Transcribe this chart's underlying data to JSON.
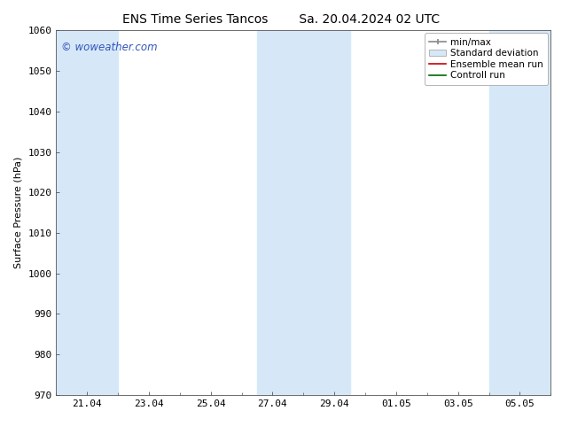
{
  "title_left": "ENS Time Series Tancos",
  "title_right": "Sa. 20.04.2024 02 UTC",
  "ylabel": "Surface Pressure (hPa)",
  "ylim": [
    970,
    1060
  ],
  "yticks": [
    970,
    980,
    990,
    1000,
    1010,
    1020,
    1030,
    1040,
    1050,
    1060
  ],
  "xtick_labels": [
    "21.04",
    "23.04",
    "25.04",
    "27.04",
    "29.04",
    "01.05",
    "03.05",
    "05.05"
  ],
  "xtick_positions": [
    1,
    3,
    5,
    7,
    9,
    11,
    13,
    15
  ],
  "xlim": [
    0,
    16
  ],
  "shaded_bands": [
    {
      "x_start": 0.0,
      "x_end": 2.0,
      "color": "#d6e8f8"
    },
    {
      "x_start": 6.5,
      "x_end": 9.5,
      "color": "#d6e8f8"
    },
    {
      "x_start": 14.0,
      "x_end": 16.0,
      "color": "#d6e8f8"
    }
  ],
  "bg_color": "#ffffff",
  "plot_bg_color": "#ffffff",
  "tick_color": "#333333",
  "watermark_text": "© woweather.com",
  "watermark_color": "#3355bb",
  "legend_items": [
    {
      "label": "min/max",
      "color": "#999999",
      "style": "errorbar"
    },
    {
      "label": "Standard deviation",
      "color": "#d6e8f8",
      "style": "fill"
    },
    {
      "label": "Ensemble mean run",
      "color": "#cc0000",
      "style": "line"
    },
    {
      "label": "Controll run",
      "color": "#006600",
      "style": "line"
    }
  ],
  "title_fontsize": 10,
  "ylabel_fontsize": 8,
  "tick_fontsize": 8,
  "legend_fontsize": 7.5,
  "watermark_fontsize": 8.5
}
